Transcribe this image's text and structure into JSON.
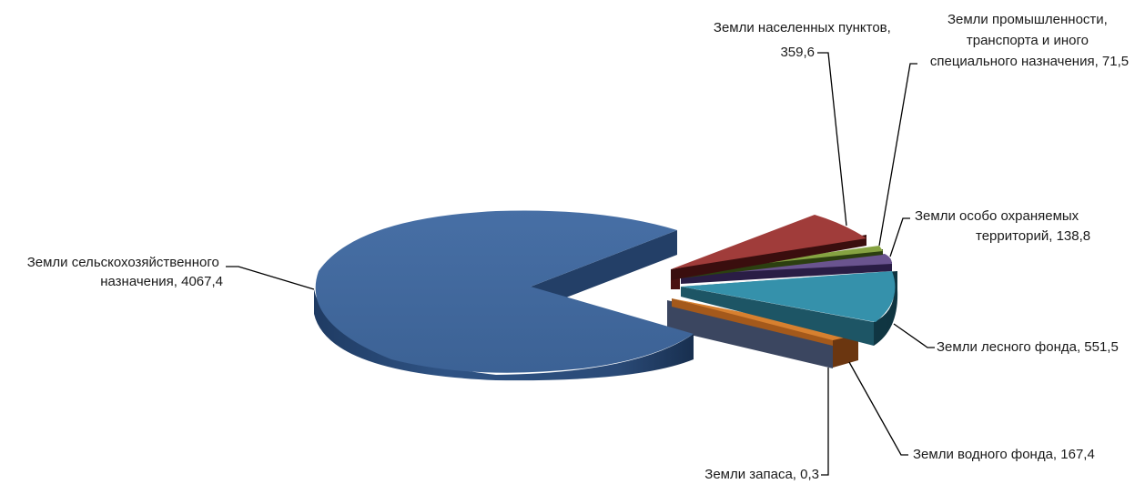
{
  "chart_data": {
    "type": "pie",
    "style": "3d-exploded",
    "slices": [
      {
        "label": "Земли сельскохозяйственного назначения",
        "value": 4067.4,
        "label_lines": [
          "Земли сельскохозяйственного",
          "назначения, 4067,4"
        ],
        "color": "#41679b"
      },
      {
        "label": "Земли населенных пунктов",
        "value": 359.6,
        "label_lines": [
          "Земли населенных пунктов,",
          "359,6"
        ],
        "color": "#a03c3a"
      },
      {
        "label": "Земли промышленности, транспорта и иного специального назначения",
        "value": 71.5,
        "label_lines": [
          "Земли промышленности,",
          "транспорта и иного",
          "специального назначения, 71,5"
        ],
        "color": "#86a342"
      },
      {
        "label": "Земли особо охраняемых территорий",
        "value": 138.8,
        "label_lines": [
          "Земли особо охраняемых",
          "территорий, 138,8"
        ],
        "color": "#6a548f"
      },
      {
        "label": "Земли лесного фонда",
        "value": 551.5,
        "label_lines": [
          "Земли лесного фонда, 551,5"
        ],
        "color": "#3591ab"
      },
      {
        "label": "Земли водного фонда",
        "value": 167.4,
        "label_lines": [
          "Земли водного фонда, 167,4"
        ],
        "color": "#d7802f"
      },
      {
        "label": "Земли запаса",
        "value": 0.3,
        "label_lines": [
          "Земли запаса, 0,3"
        ],
        "color": "#4b5872"
      }
    ]
  }
}
